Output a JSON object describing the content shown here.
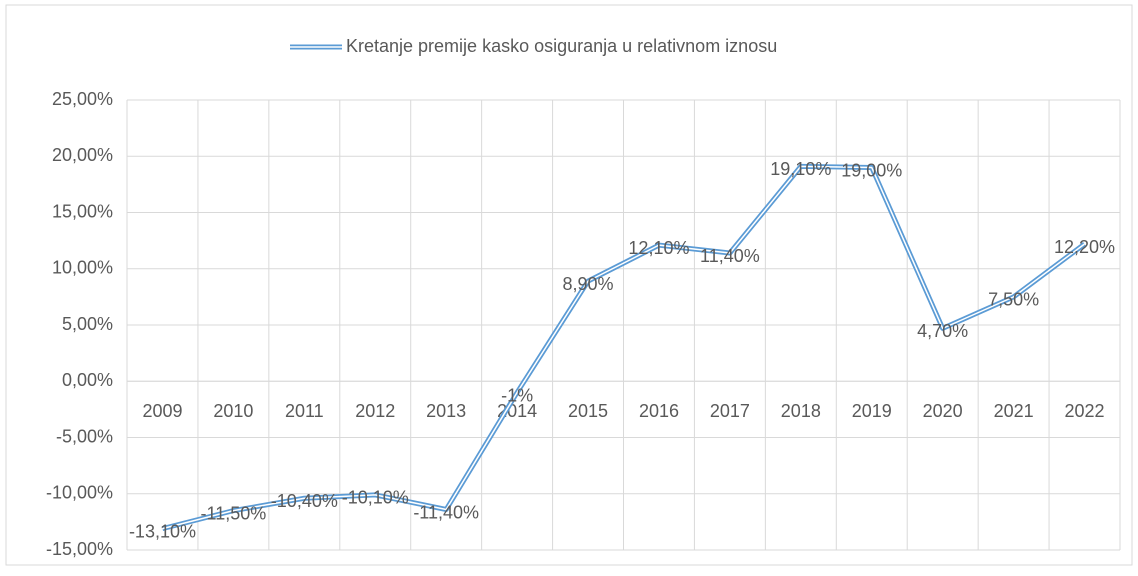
{
  "chart_data": {
    "type": "line",
    "categories": [
      "2009",
      "2010",
      "2011",
      "2012",
      "2013",
      "2014",
      "2015",
      "2016",
      "2017",
      "2018",
      "2019",
      "2020",
      "2021",
      "2022"
    ],
    "series": [
      {
        "name": "Kretanje premije kasko osiguranja u relativnom iznosu",
        "color": "#5b9bd5",
        "values": [
          -13.1,
          -11.5,
          -10.4,
          -10.1,
          -11.4,
          -1,
          8.9,
          12.1,
          11.4,
          19.1,
          19.0,
          4.7,
          7.5,
          12.2
        ],
        "value_labels": [
          "-13,10%",
          "-11,50%",
          "-10,40%",
          "-10,10%",
          "-11,40%",
          "-1%",
          "8,90%",
          "12,10%",
          "11,40%",
          "19,10%",
          "19,00%",
          "4,70%",
          "7,50%",
          "12,20%"
        ]
      }
    ],
    "ylim": [
      -15,
      25
    ],
    "yticks": [
      {
        "value": -15,
        "label": "-15,00%"
      },
      {
        "value": -10,
        "label": "-10,00%"
      },
      {
        "value": -5,
        "label": "-5,00%"
      },
      {
        "value": 0,
        "label": "0,00%"
      },
      {
        "value": 5,
        "label": "5,00%"
      },
      {
        "value": 10,
        "label": "10,00%"
      },
      {
        "value": 15,
        "label": "15,00%"
      },
      {
        "value": 20,
        "label": "20,00%"
      },
      {
        "value": 25,
        "label": "25,00%"
      }
    ],
    "grid": true,
    "legend": "top"
  }
}
